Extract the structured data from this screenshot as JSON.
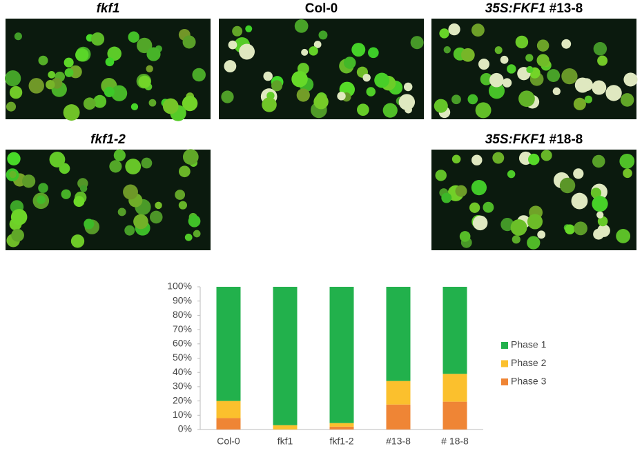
{
  "panels": [
    {
      "label_italic": "fkf1"
    },
    {
      "label": "Col-0"
    },
    {
      "label_italic": "35S:FKF1",
      "label": "#13-8"
    },
    {
      "label_italic": "fkf1-2"
    },
    {
      "label_italic": "35S:FKF1",
      "label": "#18-8"
    }
  ],
  "chart_data": {
    "type": "bar",
    "stacked": true,
    "categories": [
      "Col-0",
      "fkf1",
      "fkf1-2",
      "#13-8",
      "# 18-8"
    ],
    "series": [
      {
        "name": "Phase 1",
        "color": "#22b14c",
        "values": [
          80,
          97,
          95.5,
          66,
          61
        ]
      },
      {
        "name": "Phase 2",
        "color": "#fbc02d",
        "values": [
          12,
          3,
          2.5,
          16.5,
          19.5
        ]
      },
      {
        "name": "Phase 3",
        "color": "#ef8535",
        "values": [
          8,
          0,
          2,
          17.5,
          19.5
        ]
      }
    ],
    "ylim": [
      0,
      100
    ],
    "yticks": [
      {
        "value": 0,
        "label": "0%"
      },
      {
        "value": 10,
        "label": "10%"
      },
      {
        "value": 20,
        "label": "20%"
      },
      {
        "value": 30,
        "label": "30%"
      },
      {
        "value": 40,
        "label": "40%"
      },
      {
        "value": 50,
        "label": "50%"
      },
      {
        "value": 60,
        "label": "60%"
      },
      {
        "value": 70,
        "label": "70%"
      },
      {
        "value": 80,
        "label": "80%"
      },
      {
        "value": 90,
        "label": "90%"
      },
      {
        "value": 100,
        "label": "100%"
      }
    ],
    "grid": false,
    "legend": "right"
  }
}
